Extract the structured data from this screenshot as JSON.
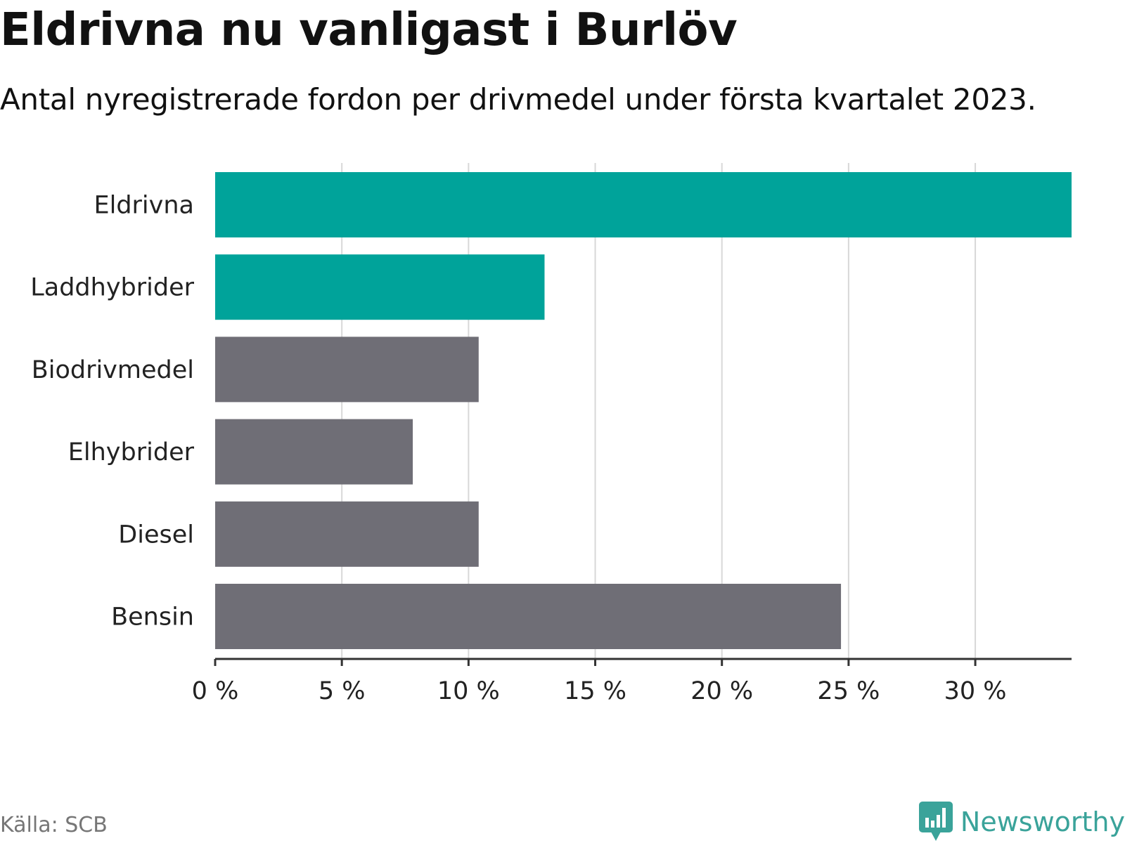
{
  "header": {
    "title": "Eldrivna nu vanligast i Burlöv",
    "subtitle": "Antal nyregistrerade fordon per drivmedel under första kvartalet 2023."
  },
  "footer": {
    "source": "Källa: SCB",
    "brand": "Newsworthy"
  },
  "colors": {
    "highlight": "#00a39a",
    "neutral": "#6f6e76",
    "grid": "#d8d8d8",
    "axis": "#333333",
    "brand": "#3aa39a"
  },
  "chart_data": {
    "type": "bar",
    "orientation": "horizontal",
    "categories": [
      "Eldrivna",
      "Laddhybrider",
      "Biodrivmedel",
      "Elhybrider",
      "Diesel",
      "Bensin"
    ],
    "values": [
      33.8,
      13.0,
      10.4,
      7.8,
      10.4,
      24.7
    ],
    "highlighted": [
      true,
      true,
      false,
      false,
      false,
      false
    ],
    "unit": "%",
    "xlim": [
      0,
      33.8
    ],
    "ticks": [
      0,
      5,
      10,
      15,
      20,
      25,
      30
    ],
    "tick_labels": [
      "0 %",
      "5 %",
      "10 %",
      "15 %",
      "20 %",
      "25 %",
      "30 %"
    ],
    "grid": true
  }
}
